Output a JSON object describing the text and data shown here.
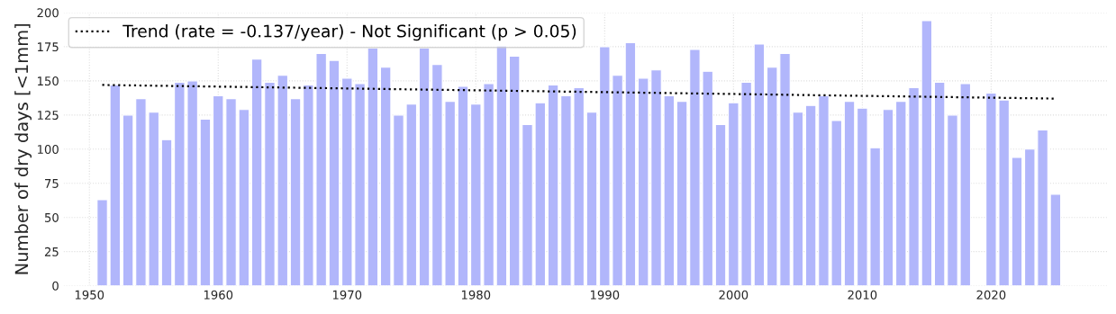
{
  "chart_data": {
    "type": "bar",
    "ylabel": "Number of dry days [<1mm]",
    "x": [
      1951,
      1952,
      1953,
      1954,
      1955,
      1956,
      1957,
      1958,
      1959,
      1960,
      1961,
      1962,
      1963,
      1964,
      1965,
      1966,
      1967,
      1968,
      1969,
      1970,
      1971,
      1972,
      1973,
      1974,
      1975,
      1976,
      1977,
      1978,
      1979,
      1980,
      1981,
      1982,
      1983,
      1984,
      1985,
      1986,
      1987,
      1988,
      1989,
      1990,
      1991,
      1992,
      1993,
      1994,
      1995,
      1996,
      1997,
      1998,
      1999,
      2000,
      2001,
      2002,
      2003,
      2004,
      2005,
      2006,
      2007,
      2008,
      2009,
      2010,
      2011,
      2012,
      2013,
      2014,
      2015,
      2016,
      2017,
      2018,
      2019,
      2020,
      2021,
      2022,
      2023,
      2024,
      2025
    ],
    "series": [
      {
        "color": "#b1b6fb",
        "values": [
          63,
          147,
          125,
          137,
          127,
          107,
          149,
          150,
          122,
          139,
          137,
          129,
          166,
          149,
          154,
          137,
          147,
          170,
          165,
          152,
          148,
          174,
          160,
          125,
          133,
          174,
          162,
          135,
          146,
          133,
          148,
          176,
          168,
          118,
          134,
          147,
          139,
          145,
          127,
          175,
          154,
          178,
          152,
          158,
          139,
          135,
          173,
          157,
          118,
          134,
          149,
          177,
          160,
          170,
          127,
          132,
          139,
          121,
          135,
          130,
          101,
          129,
          135,
          145,
          194,
          149,
          125,
          148,
          null,
          141,
          136,
          94,
          100,
          114,
          67
        ]
      },
      {
        "type": "line",
        "name": "Trend (rate = -0.137/year) - Not Significant (p > 0.05)",
        "color": "#000000",
        "line_style": "dotted",
        "x": [
          1951,
          2025
        ],
        "values": [
          147,
          137
        ]
      }
    ],
    "xlim": [
      1948,
      2029
    ],
    "xticks": [
      1950,
      1960,
      1970,
      1980,
      1990,
      2000,
      2010,
      2020
    ],
    "ylim": [
      0,
      200
    ],
    "yticks": [
      0,
      25,
      50,
      75,
      100,
      125,
      150,
      175,
      200
    ],
    "grid": true,
    "legend": "top left"
  }
}
